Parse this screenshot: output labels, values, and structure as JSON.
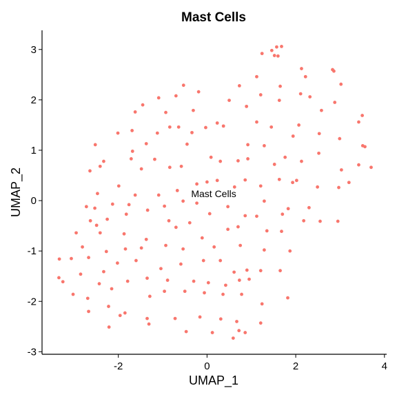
{
  "chart_data": {
    "type": "scatter",
    "title": "Mast Cells",
    "x_label": "UMAP_1",
    "y_label": "UMAP_2",
    "color": "#F8766D",
    "annotation": {
      "text": "Mast Cells",
      "x": 0.15,
      "y": 0.07
    },
    "xlim": [
      -3.72,
      4.05
    ],
    "ylim": [
      -3.05,
      3.38
    ],
    "xticks": [
      -2,
      0,
      2,
      4
    ],
    "yticks": [
      -3,
      -2,
      -1,
      0,
      1,
      2,
      3
    ],
    "grid": false,
    "x": [
      1.57,
      1.68,
      1.46,
      1.24,
      1.52,
      1.6,
      2.13,
      2.83,
      2.86,
      2.22,
      1.12,
      -0.53,
      0.73,
      1.65,
      3.02,
      -0.19,
      2.11,
      1.21,
      -0.7,
      -1.09,
      0.5,
      2.32,
      2.88,
      1.63,
      0.89,
      -1.45,
      -1.62,
      -0.93,
      -0.31,
      2.58,
      3.5,
      0.23,
      1.12,
      2.07,
      3.42,
      -2.01,
      -1.69,
      -1.37,
      -0.34,
      -0.84,
      -0.64,
      -1.12,
      -0.03,
      0.37,
      1.45,
      2.53,
      2.99,
      -2.52,
      -1.68,
      -0.45,
      0.92,
      1.29,
      1.94,
      0.09,
      0.92,
      1.76,
      2.52,
      3.51,
      3.56,
      -2.33,
      -2.41,
      -2.64,
      -1.71,
      -1.18,
      -0.84,
      -1.48,
      -0.58,
      0.3,
      0.7,
      1.52,
      2.13,
      3.7,
      3.03,
      3.42,
      0.0,
      -0.23,
      0.23,
      0.86,
      1.63,
      2.02,
      2.49,
      2.97,
      3.2,
      -2.47,
      -1.99,
      -1.62,
      -2.13,
      -1.09,
      -0.67,
      0.62,
      1.21,
      1.93,
      -2.72,
      -2.53,
      -1.76,
      -0.96,
      -0.54,
      -0.23,
      0.47,
      1.29,
      1.83,
      2.3,
      -2.95,
      -2.63,
      -2.49,
      -2.25,
      -1.82,
      -1.34,
      -0.86,
      -0.39,
      0.06,
      0.86,
      1.12,
      1.7,
      2.18,
      2.55,
      2.95,
      -2.81,
      -2.41,
      -1.87,
      -1.37,
      -0.7,
      -0.11,
      0.47,
      0.7,
      1.35,
      1.68,
      -3.33,
      -3.06,
      -2.67,
      -2.27,
      -1.84,
      -1.48,
      -0.93,
      -0.54,
      0.16,
      0.75,
      1.29,
      1.87,
      -3.34,
      -3.25,
      -3.02,
      -2.85,
      -2.33,
      -2.02,
      -1.6,
      -1.04,
      -0.59,
      -0.08,
      0.3,
      0.61,
      0.9,
      1.21,
      1.65,
      -2.69,
      -2.43,
      -2.15,
      -1.79,
      -1.35,
      -0.89,
      -0.3,
      0.03,
      0.42,
      0.73,
      0.95,
      -2.67,
      -2.22,
      -1.85,
      -1.29,
      -0.96,
      -0.5,
      -0.06,
      0.36,
      0.78,
      1.24,
      1.82,
      -2.21,
      -1.96,
      -1.35,
      -1.31,
      -0.72,
      -0.16,
      0.31,
      0.67,
      1.21,
      -0.47,
      0.12,
      0.59,
      0.86,
      0.72
    ],
    "y": [
      3.05,
      3.06,
      2.98,
      2.92,
      2.88,
      2.87,
      2.62,
      2.6,
      2.57,
      2.46,
      2.46,
      2.29,
      2.28,
      2.27,
      2.31,
      2.16,
      2.12,
      2.1,
      2.08,
      2.04,
      1.99,
      2.06,
      1.95,
      1.99,
      1.87,
      1.9,
      1.76,
      1.75,
      1.79,
      1.79,
      1.69,
      1.54,
      1.56,
      1.5,
      1.56,
      1.34,
      1.39,
      1.13,
      1.35,
      1.46,
      1.46,
      1.34,
      1.45,
      1.48,
      1.46,
      1.33,
      1.23,
      1.11,
      0.98,
      1.12,
      1.11,
      1.09,
      1.28,
      0.86,
      0.83,
      0.86,
      0.94,
      1.09,
      1.07,
      0.78,
      0.68,
      0.59,
      0.83,
      0.82,
      0.66,
      0.63,
      0.68,
      0.78,
      0.79,
      0.72,
      0.78,
      0.66,
      0.61,
      0.71,
      0.37,
      0.33,
      0.4,
      0.41,
      0.42,
      0.4,
      0.27,
      0.26,
      0.36,
      0.14,
      0.29,
      0.11,
      -0.07,
      0.11,
      0.2,
      0.27,
      0.29,
      0.36,
      -0.12,
      -0.15,
      -0.08,
      -0.11,
      -0.01,
      -0.05,
      -0.12,
      -0.01,
      -0.16,
      -0.14,
      -0.64,
      -0.4,
      -0.49,
      -0.37,
      -0.27,
      -0.19,
      -0.4,
      -0.44,
      -0.26,
      -0.3,
      -0.31,
      -0.27,
      -0.4,
      -0.41,
      -0.41,
      -0.92,
      -0.64,
      -0.66,
      -0.77,
      -0.53,
      -0.74,
      -0.57,
      -0.52,
      -0.6,
      -0.61,
      -1.16,
      -1.15,
      -1.13,
      -1.01,
      -0.96,
      -0.94,
      -0.89,
      -0.96,
      -0.92,
      -0.89,
      -0.98,
      -1.0,
      -1.53,
      -1.61,
      -1.86,
      -1.46,
      -1.41,
      -1.24,
      -1.19,
      -1.35,
      -1.26,
      -1.19,
      -1.19,
      -1.42,
      -1.38,
      -1.39,
      -1.39,
      -1.94,
      -1.65,
      -1.75,
      -1.6,
      -1.54,
      -1.58,
      -1.6,
      -1.63,
      -1.68,
      -1.58,
      -1.56,
      -2.2,
      -2.1,
      -2.23,
      -1.9,
      -1.8,
      -1.8,
      -1.83,
      -1.86,
      -1.86,
      -2.05,
      -1.93,
      -2.51,
      -2.28,
      -2.34,
      -2.45,
      -2.34,
      -2.31,
      -2.35,
      -2.4,
      -2.43,
      -2.6,
      -2.62,
      -2.73,
      -2.62,
      -2.58
    ]
  }
}
